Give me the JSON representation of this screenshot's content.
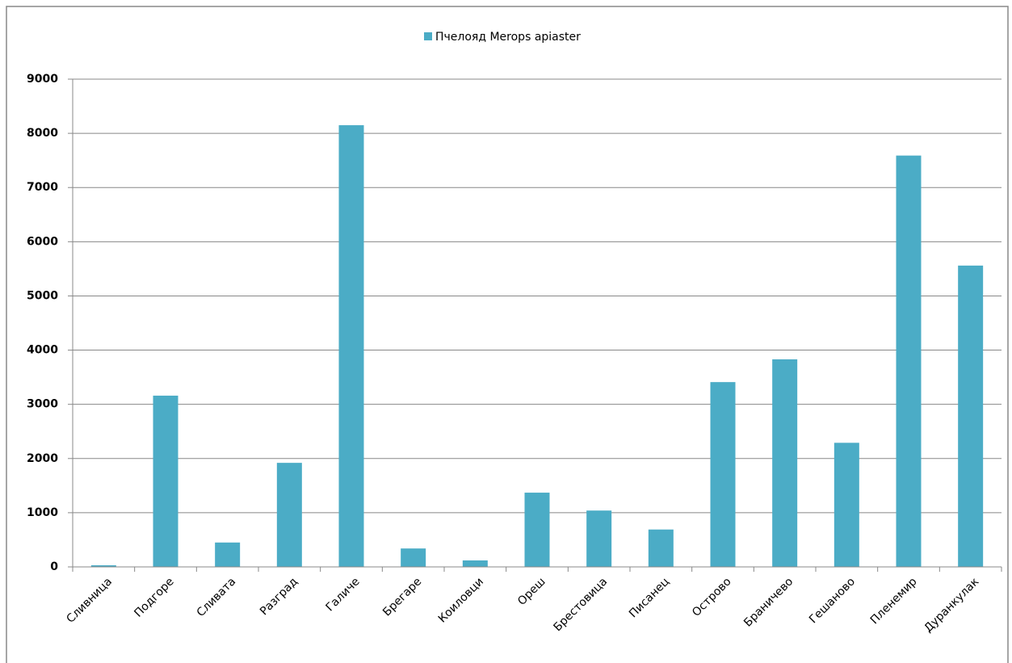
{
  "chart_data": {
    "type": "bar",
    "categories": [
      "Сливница",
      "Подгоре",
      "Сливата",
      "Разград",
      "Галиче",
      "Брегаре",
      "Коиловци",
      "Ореш",
      "Брестовица",
      "Писанец",
      "Острово",
      "Браничево",
      "Гешаново",
      "Пленемир",
      "Дуранкулак"
    ],
    "series": [
      {
        "name": "Пчелояд Merops apiaster",
        "color": "#4bacc6",
        "values": [
          30,
          3160,
          450,
          1920,
          8150,
          340,
          120,
          1370,
          1040,
          690,
          3410,
          3830,
          2290,
          7590,
          5560
        ]
      }
    ],
    "ylim": [
      0,
      9000
    ],
    "yticks": [
      0,
      1000,
      2000,
      3000,
      4000,
      5000,
      6000,
      7000,
      8000,
      9000
    ],
    "grid": true,
    "legend": "top"
  }
}
